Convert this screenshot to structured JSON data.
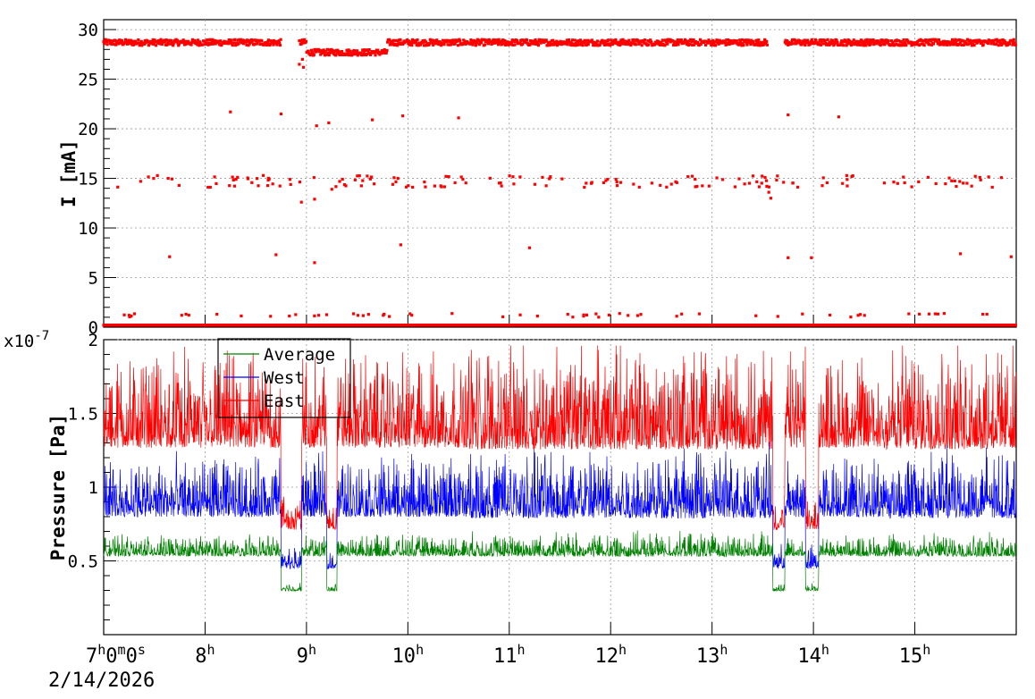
{
  "chart_data": [
    {
      "type": "scatter",
      "ylabel": "I [mA]",
      "ylim": [
        0,
        31
      ],
      "y_ticks": [
        "0",
        "5",
        "10",
        "15",
        "20",
        "25",
        "30"
      ],
      "xlim_hours": [
        7,
        16
      ],
      "grid": true,
      "series": [
        {
          "color": "#ff0000",
          "description_points": {
            "main_band_mA": 28.7,
            "main_band_segments": [
              [
                7.0,
                8.75
              ],
              [
                8.93,
                13.55
              ],
              [
                13.72,
                16.0
              ]
            ],
            "secondary_band_mA": 14.7,
            "zero_band_mA": 0.2,
            "low_outliers": [
              [
                8.93,
                26.5
              ],
              [
                8.96,
                27.0
              ],
              [
                8.97,
                26.2
              ]
            ]
          }
        }
      ]
    },
    {
      "type": "line",
      "ylabel": "Pressure [Pa]",
      "y_exponent": "x10^-7",
      "y_exponent_label": "x10",
      "y_exponent_power": "-7",
      "ylim": [
        0.0,
        2.0
      ],
      "y_ticks": [
        "0.5",
        "1",
        "1.5",
        "2"
      ],
      "xlim_hours": [
        7,
        16
      ],
      "grid": true,
      "legend": {
        "placement": "top-left",
        "entries": [
          {
            "label": "Average",
            "color": "#008000"
          },
          {
            "label": "West",
            "color": "#0000ff"
          },
          {
            "label": "East",
            "color": "#ff0000"
          }
        ]
      },
      "series": [
        {
          "name": "Average",
          "color": "#008000",
          "base": 0.55,
          "noise": 0.12
        },
        {
          "name": "West",
          "color": "#0000ff",
          "base": 0.85,
          "noise": 0.35
        },
        {
          "name": "East",
          "color": "#ff0000",
          "base": 1.35,
          "noise": 0.55
        }
      ],
      "dropouts": [
        [
          8.75,
          8.95
        ],
        [
          9.2,
          9.3
        ],
        [
          13.6,
          13.72
        ],
        [
          13.92,
          14.05
        ]
      ]
    }
  ],
  "x_axis": {
    "start_label": "7",
    "start_suffix": "h0m0s",
    "start_h": "h",
    "start_m_num": "0",
    "start_m": "m",
    "start_s_num": "0",
    "start_s": "s",
    "date": "2/14/2026",
    "hour_labels": [
      "8",
      "9",
      "10",
      "11",
      "12",
      "13",
      "14",
      "15"
    ],
    "hour_suffix": "h"
  }
}
